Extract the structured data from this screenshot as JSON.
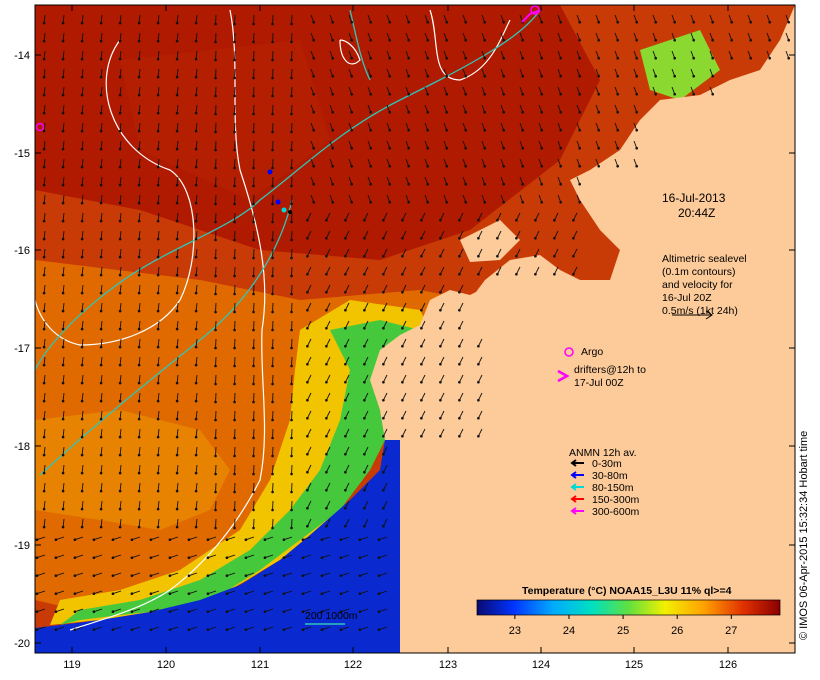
{
  "map": {
    "timestamp_date": "16-Jul-2013",
    "timestamp_time": "20:44Z",
    "x_ticks": [
      "119",
      "120",
      "121",
      "122",
      "123",
      "124",
      "125",
      "126"
    ],
    "y_ticks": [
      "-14",
      "-15",
      "-16",
      "-17",
      "-18",
      "-19",
      "-20"
    ],
    "altimetry_note": [
      "Altimetric sealevel",
      "(0.1m contours)",
      "and velocity for",
      "16-Jul 20Z",
      "0.5m/s (1kt 24h)"
    ],
    "argo_label": "Argo",
    "drifters_label": [
      "drifters@12h to",
      "17-Jul 00Z"
    ],
    "depth_legend": {
      "title": "ANMN 12h av.",
      "items": [
        {
          "label": "0-30m",
          "color": "#000000"
        },
        {
          "label": "30-80m",
          "color": "#0000ff"
        },
        {
          "label": "80-150m",
          "color": "#00d8d8"
        },
        {
          "label": "150-300m",
          "color": "#ff0000"
        },
        {
          "label": "300-600m",
          "color": "#ff00ff"
        }
      ]
    },
    "bathymetry_label": "200  1000m",
    "colorbar": {
      "title": "Temperature (°C) NOAA15_L3U 11% ql>=4",
      "ticks": [
        "23",
        "24",
        "25",
        "26",
        "27"
      ],
      "min": 22.3,
      "max": 27.9
    },
    "credit": "© IMOS 06-Apr-2015 15:32:34 Hobart time",
    "colors": {
      "land": "#fdcb9a",
      "warm": "#b81a00",
      "mid": "#e07000",
      "cool": "#f2c000",
      "green": "#3ec93a",
      "blue": "#0a2ad0",
      "contour": "#ffffff",
      "isobath": "#30c6b8"
    }
  }
}
